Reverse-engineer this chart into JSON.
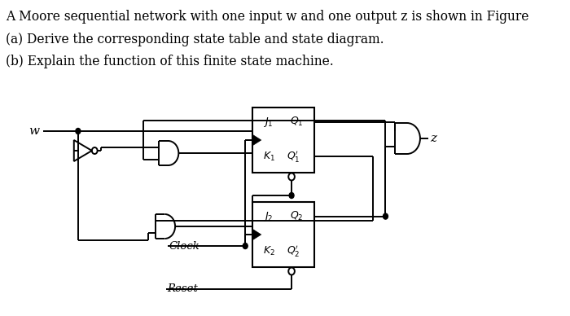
{
  "bg_color": "#ffffff",
  "text_color": "#000000",
  "title_lines": [
    "A Moore sequential network with one input w and one output z is shown in Figure",
    "(a) Derive the corresponding state table and state diagram.",
    "(b) Explain the function of this finite state machine."
  ],
  "title_fontsize": 11.2,
  "fig_width": 7.0,
  "fig_height": 3.88,
  "lw": 1.4
}
